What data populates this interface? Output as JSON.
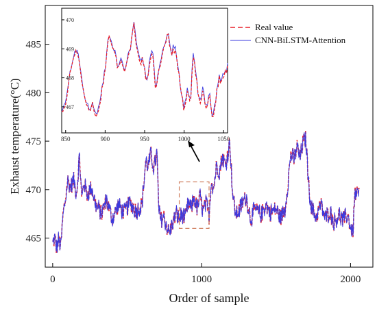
{
  "chart_data": {
    "type": "line",
    "xlabel": "Order of sample",
    "ylabel": "Exhaust temperature(°C)",
    "xlim": [
      -50,
      2150
    ],
    "ylim": [
      462,
      489
    ],
    "xticks": [
      0,
      1000,
      2000
    ],
    "yticks": [
      465,
      470,
      475,
      480,
      485
    ],
    "legend_position": "top-right",
    "series": [
      {
        "name": "Real value",
        "style": "dashed",
        "color": "#e8202a"
      },
      {
        "name": "CNN-BiLSTM-Attention",
        "style": "solid",
        "color": "#3a3adf"
      }
    ],
    "real_profile": [
      [
        0,
        464.4
      ],
      [
        15,
        465.0
      ],
      [
        25,
        463.9
      ],
      [
        40,
        464.8
      ],
      [
        55,
        464.1
      ],
      [
        70,
        467.5
      ],
      [
        85,
        468.9
      ],
      [
        100,
        471.0
      ],
      [
        120,
        470.2
      ],
      [
        140,
        471.0
      ],
      [
        160,
        469.6
      ],
      [
        180,
        473.5
      ],
      [
        195,
        469.0
      ],
      [
        210,
        470.8
      ],
      [
        230,
        469.5
      ],
      [
        260,
        470.2
      ],
      [
        290,
        468.4
      ],
      [
        330,
        467.5
      ],
      [
        360,
        469.0
      ],
      [
        400,
        467.0
      ],
      [
        440,
        468.4
      ],
      [
        480,
        467.6
      ],
      [
        520,
        468.7
      ],
      [
        560,
        467.8
      ],
      [
        600,
        468.5
      ],
      [
        610,
        470.3
      ],
      [
        625,
        473.0
      ],
      [
        640,
        472.4
      ],
      [
        660,
        473.6
      ],
      [
        680,
        472.2
      ],
      [
        700,
        473.8
      ],
      [
        712,
        468.0
      ],
      [
        725,
        466.8
      ],
      [
        745,
        467.3
      ],
      [
        770,
        466.0
      ],
      [
        785,
        465.5
      ],
      [
        800,
        466.3
      ],
      [
        830,
        467.5
      ],
      [
        850,
        467.0
      ],
      [
        870,
        467.5
      ],
      [
        890,
        466.9
      ],
      [
        910,
        468.6
      ],
      [
        930,
        468.0
      ],
      [
        950,
        469.2
      ],
      [
        970,
        468.0
      ],
      [
        990,
        469.3
      ],
      [
        1010,
        467.7
      ],
      [
        1030,
        468.6
      ],
      [
        1050,
        467.3
      ],
      [
        1065,
        471.1
      ],
      [
        1080,
        470.1
      ],
      [
        1100,
        472.5
      ],
      [
        1120,
        471.9
      ],
      [
        1140,
        473.5
      ],
      [
        1160,
        472.4
      ],
      [
        1180,
        474.2
      ],
      [
        1190,
        474.9
      ],
      [
        1200,
        472.0
      ],
      [
        1210,
        469.2
      ],
      [
        1230,
        467.4
      ],
      [
        1250,
        467.8
      ],
      [
        1270,
        468.5
      ],
      [
        1300,
        469.2
      ],
      [
        1330,
        467.0
      ],
      [
        1360,
        468.0
      ],
      [
        1400,
        467.3
      ],
      [
        1430,
        468.5
      ],
      [
        1460,
        467.6
      ],
      [
        1500,
        468.0
      ],
      [
        1530,
        467.1
      ],
      [
        1560,
        468.0
      ],
      [
        1580,
        470.8
      ],
      [
        1600,
        473.8
      ],
      [
        1620,
        473.0
      ],
      [
        1640,
        474.5
      ],
      [
        1660,
        473.2
      ],
      [
        1680,
        474.8
      ],
      [
        1700,
        475.3
      ],
      [
        1720,
        470.2
      ],
      [
        1740,
        468.0
      ],
      [
        1770,
        467.2
      ],
      [
        1800,
        468.5
      ],
      [
        1830,
        467.0
      ],
      [
        1860,
        467.8
      ],
      [
        1890,
        466.6
      ],
      [
        1920,
        467.5
      ],
      [
        1950,
        466.8
      ],
      [
        1980,
        467.4
      ],
      [
        2000,
        466.2
      ],
      [
        2015,
        465.5
      ],
      [
        2030,
        469.7
      ],
      [
        2045,
        469.4
      ],
      [
        2060,
        469.7
      ]
    ],
    "zoom_box": {
      "x_range": [
        850,
        1050
      ],
      "y_range": [
        466,
        470.8
      ]
    },
    "inset": {
      "xlim": [
        845,
        1055
      ],
      "ylim": [
        466.1,
        470.4
      ],
      "xticks": [
        850,
        900,
        950,
        1000,
        1050
      ],
      "yticks": [
        467,
        468,
        469,
        470
      ],
      "real_profile": [
        [
          845,
          466.9
        ],
        [
          850,
          467.0
        ],
        [
          855,
          468.0
        ],
        [
          860,
          468.8
        ],
        [
          864,
          468.9
        ],
        [
          868,
          468.5
        ],
        [
          872,
          467.6
        ],
        [
          876,
          467.1
        ],
        [
          880,
          466.8
        ],
        [
          884,
          467.2
        ],
        [
          888,
          466.6
        ],
        [
          892,
          466.9
        ],
        [
          896,
          467.6
        ],
        [
          900,
          468.3
        ],
        [
          904,
          469.4
        ],
        [
          908,
          469.2
        ],
        [
          912,
          468.8
        ],
        [
          916,
          468.4
        ],
        [
          920,
          468.7
        ],
        [
          924,
          468.2
        ],
        [
          928,
          468.5
        ],
        [
          932,
          469.0
        ],
        [
          936,
          469.9
        ],
        [
          940,
          469.1
        ],
        [
          944,
          468.5
        ],
        [
          948,
          468.7
        ],
        [
          952,
          467.8
        ],
        [
          956,
          468.3
        ],
        [
          960,
          468.9
        ],
        [
          964,
          467.6
        ],
        [
          968,
          468.2
        ],
        [
          972,
          468.7
        ],
        [
          976,
          469.3
        ],
        [
          980,
          469.5
        ],
        [
          984,
          468.8
        ],
        [
          988,
          469.0
        ],
        [
          992,
          468.4
        ],
        [
          996,
          467.6
        ],
        [
          1000,
          466.9
        ],
        [
          1004,
          467.6
        ],
        [
          1008,
          467.2
        ],
        [
          1012,
          468.9
        ],
        [
          1016,
          467.8
        ],
        [
          1020,
          467.2
        ],
        [
          1024,
          467.5
        ],
        [
          1028,
          466.9
        ],
        [
          1032,
          467.4
        ],
        [
          1036,
          466.6
        ],
        [
          1040,
          467.2
        ],
        [
          1044,
          468.0
        ],
        [
          1048,
          467.8
        ],
        [
          1052,
          468.2
        ],
        [
          1055,
          468.3
        ]
      ]
    }
  }
}
